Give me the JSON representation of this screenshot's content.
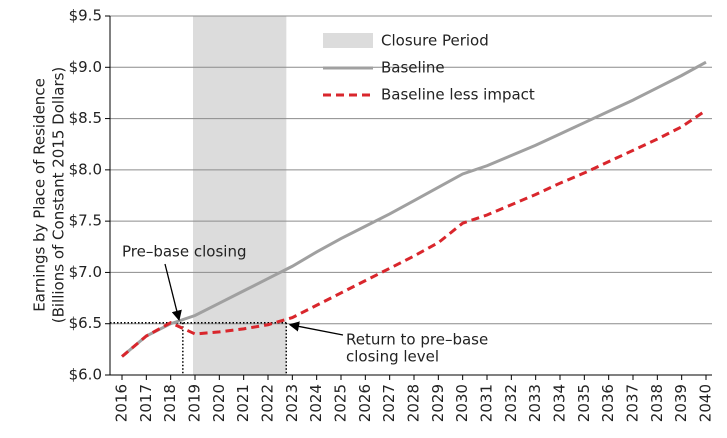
{
  "chart_data": {
    "type": "line",
    "y_label": [
      "Earnings by Place of Residence",
      "(Billions of Constant 2015 Dollars)"
    ],
    "categories": [
      "2016",
      "2017",
      "2018",
      "2019",
      "2020",
      "2021",
      "2022",
      "2023",
      "2024",
      "2025",
      "2026",
      "2027",
      "2028",
      "2029",
      "2030",
      "2031",
      "2032",
      "2033",
      "2034",
      "2035",
      "2036",
      "2037",
      "2038",
      "2039",
      "2040"
    ],
    "series": [
      {
        "name": "Baseline",
        "color": "#a0a0a0",
        "dash": false,
        "values": [
          6.18,
          6.38,
          6.5,
          6.58,
          6.7,
          6.82,
          6.94,
          7.06,
          7.2,
          7.33,
          7.45,
          7.57,
          7.7,
          7.83,
          7.96,
          8.04,
          8.14,
          8.24,
          8.35,
          8.46,
          8.57,
          8.68,
          8.8,
          8.92,
          9.05
        ]
      },
      {
        "name": "Baseline less impact",
        "color": "#d9262c",
        "dash": true,
        "values": [
          6.18,
          6.38,
          6.51,
          6.4,
          6.42,
          6.45,
          6.49,
          6.56,
          6.68,
          6.8,
          6.92,
          7.04,
          7.16,
          7.29,
          7.48,
          7.56,
          7.66,
          7.76,
          7.87,
          7.97,
          8.08,
          8.19,
          8.3,
          8.42,
          8.58
        ]
      }
    ],
    "shade": {
      "name": "Closure Period",
      "color": "#dcdcdc"
    },
    "reference_level": 6.51,
    "annotations": [
      "Pre–base closing",
      "Return to pre–base",
      "closing level"
    ],
    "ylim": [
      6.0,
      9.5
    ],
    "yticks": [
      {
        "value": 6.0,
        "label": "$6.0"
      },
      {
        "value": 6.5,
        "label": "$6.5"
      },
      {
        "value": 7.0,
        "label": "$7.0"
      },
      {
        "value": 7.5,
        "label": "$7.5"
      },
      {
        "value": 8.0,
        "label": "$8.0"
      },
      {
        "value": 8.5,
        "label": "$8.5"
      },
      {
        "value": 9.0,
        "label": "$9.0"
      },
      {
        "value": 9.5,
        "label": "$9.5"
      }
    ],
    "grid": true
  }
}
